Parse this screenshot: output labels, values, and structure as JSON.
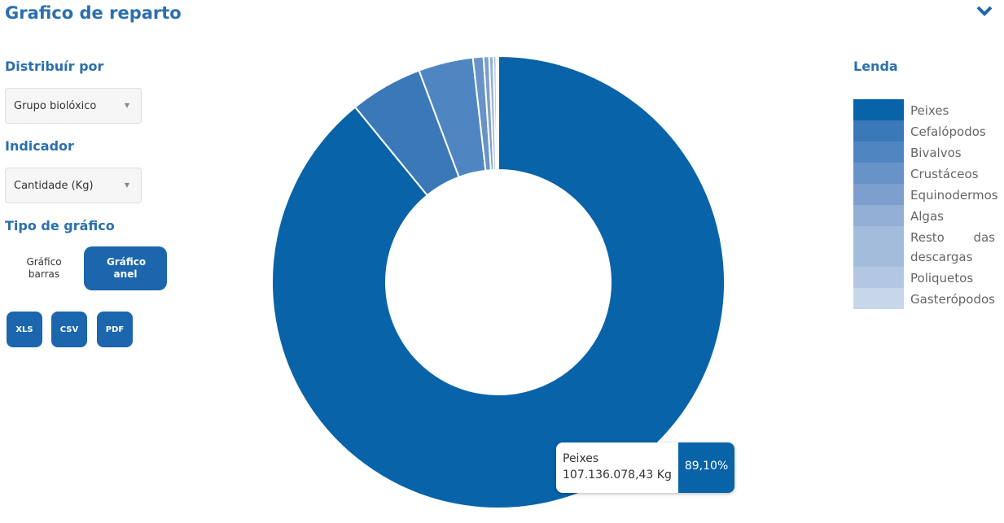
{
  "ui": {
    "title": "Grafico de reparto",
    "distribute_label": "Distribuír por",
    "distribute_value": "Grupo biolóxico",
    "indicator_label": "Indicador",
    "indicator_value": "Cantidade (Kg)",
    "chart_type_label": "Tipo de gráfico",
    "chart_type_options": [
      "Gráfico barras",
      "Gráfico anel"
    ],
    "downloads": [
      "XLS",
      "CSV",
      "PDF"
    ]
  },
  "chart_data": {
    "type": "donut",
    "legend_title": "Lenda",
    "legend": "right",
    "categories": [
      "Peixes",
      "Cefalópodos",
      "Bivalvos",
      "Crustáceos",
      "Equinodermos",
      "Algas",
      "Resto das descargas",
      "Poliquetos",
      "Gasterópodos"
    ],
    "values": [
      89.1,
      5.2,
      3.9,
      0.75,
      0.4,
      0.3,
      0.2,
      0.1,
      0.05
    ],
    "value_labels": [
      "89,10%",
      null,
      null,
      null,
      null,
      null,
      null,
      null,
      null
    ],
    "colors": [
      "#0863a8",
      "#3a78b8",
      "#4f86c1",
      "#6893c8",
      "#7d9fcd",
      "#93afd5",
      "#a4bcdc",
      "#b3c7e2",
      "#c8d6ea"
    ],
    "tooltip_amount": "107.136.078,43 Kg"
  }
}
